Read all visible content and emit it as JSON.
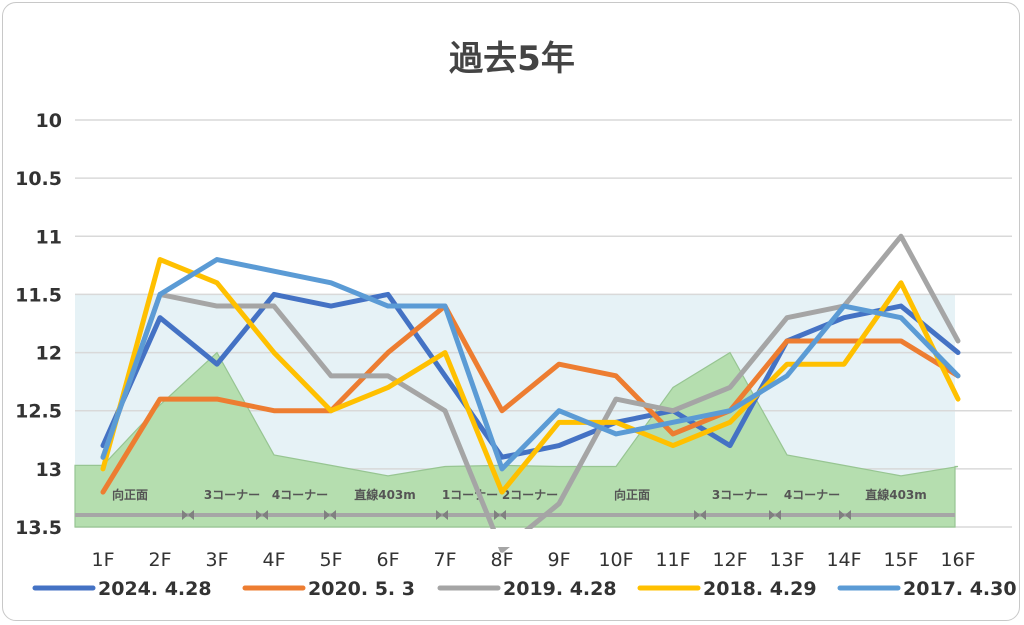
{
  "chart_data": {
    "type": "line",
    "title": "過去5年",
    "categories": [
      "1F",
      "2F",
      "3F",
      "4F",
      "5F",
      "6F",
      "7F",
      "8F",
      "9F",
      "10F",
      "11F",
      "12F",
      "13F",
      "14F",
      "15F",
      "16F"
    ],
    "y_ticks": [
      "10",
      "10.5",
      "11",
      "11.5",
      "12",
      "12.5",
      "13",
      "13.5"
    ],
    "ylim": [
      10,
      13.5
    ],
    "y_inverted": true,
    "grid": true,
    "legend_position": "bottom",
    "series": [
      {
        "name": "2024. 4.28",
        "color": "#4472c4",
        "values": [
          12.8,
          11.7,
          12.1,
          11.5,
          11.6,
          11.5,
          12.2,
          12.9,
          12.8,
          12.6,
          12.5,
          12.8,
          11.9,
          11.7,
          11.6,
          12.0
        ]
      },
      {
        "name": "2020. 5. 3",
        "color": "#ed7d31",
        "values": [
          13.2,
          12.4,
          12.4,
          12.5,
          12.5,
          12.0,
          11.6,
          12.5,
          12.1,
          12.2,
          12.7,
          12.5,
          11.9,
          11.9,
          11.9,
          12.2
        ]
      },
      {
        "name": "2019. 4.28",
        "color": "#a5a5a5",
        "values": [
          12.9,
          11.5,
          11.6,
          11.6,
          12.2,
          12.2,
          12.5,
          13.7,
          13.3,
          12.4,
          12.5,
          12.3,
          11.7,
          11.6,
          11.0,
          11.9
        ]
      },
      {
        "name": "2018. 4.29",
        "color": "#ffc000",
        "values": [
          13.0,
          11.2,
          11.4,
          12.0,
          12.5,
          12.3,
          12.0,
          13.2,
          12.6,
          12.6,
          12.8,
          12.6,
          12.1,
          12.1,
          11.4,
          12.4
        ]
      },
      {
        "name": "2017. 4.30",
        "color": "#5b9bd5",
        "values": [
          12.9,
          11.5,
          11.2,
          11.3,
          11.4,
          11.6,
          11.6,
          13.0,
          12.5,
          12.7,
          12.6,
          12.5,
          12.2,
          11.6,
          11.7,
          12.2
        ]
      }
    ],
    "course_profile_values": [
      12.97,
      12.45,
      12.0,
      12.88,
      12.97,
      13.06,
      12.98,
      12.97,
      12.98,
      12.98,
      12.3,
      12.0,
      12.88,
      12.97,
      13.06,
      12.98
    ],
    "course_segments": [
      "向正面",
      "3コーナー",
      "4コーナー",
      "直線403m",
      "1コーナー",
      "2コーナー",
      "向正面",
      "3コーナー",
      "4コーナー",
      "直線403m"
    ],
    "colors": {
      "band_fill": "#e6f2f6",
      "profile_fill": "#b5deaf",
      "profile_stroke": "#97c592",
      "segment_bar": "#a6a6a6",
      "grid": "#d9d9d9"
    }
  }
}
